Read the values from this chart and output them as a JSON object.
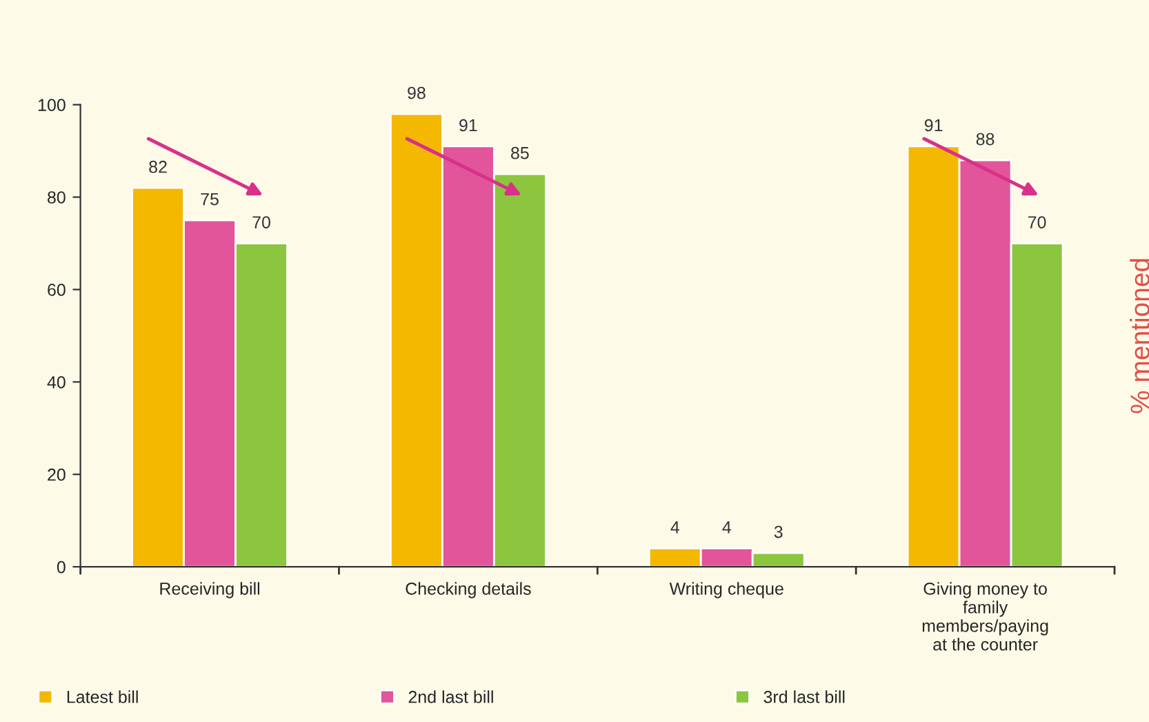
{
  "chart_data": {
    "type": "bar",
    "categories": [
      "Receiving bill",
      "Checking details",
      "Writing cheque",
      "Giving money to\nfamily\nmembers/paying\nat the counter"
    ],
    "series": [
      {
        "name": "Latest bill",
        "color": "#f5b800",
        "values": [
          82,
          98,
          4,
          91
        ]
      },
      {
        "name": "2nd last bill",
        "color": "#e2559a",
        "values": [
          75,
          91,
          4,
          88
        ]
      },
      {
        "name": "3rd last bill",
        "color": "#8cc63f",
        "values": [
          70,
          85,
          3,
          70
        ]
      }
    ],
    "ylabel": "% mentioned",
    "ylim": [
      0,
      100
    ],
    "yticks": [
      0,
      20,
      40,
      60,
      80,
      100
    ],
    "data_labels": true,
    "grid": false,
    "legend": "bottom left"
  }
}
